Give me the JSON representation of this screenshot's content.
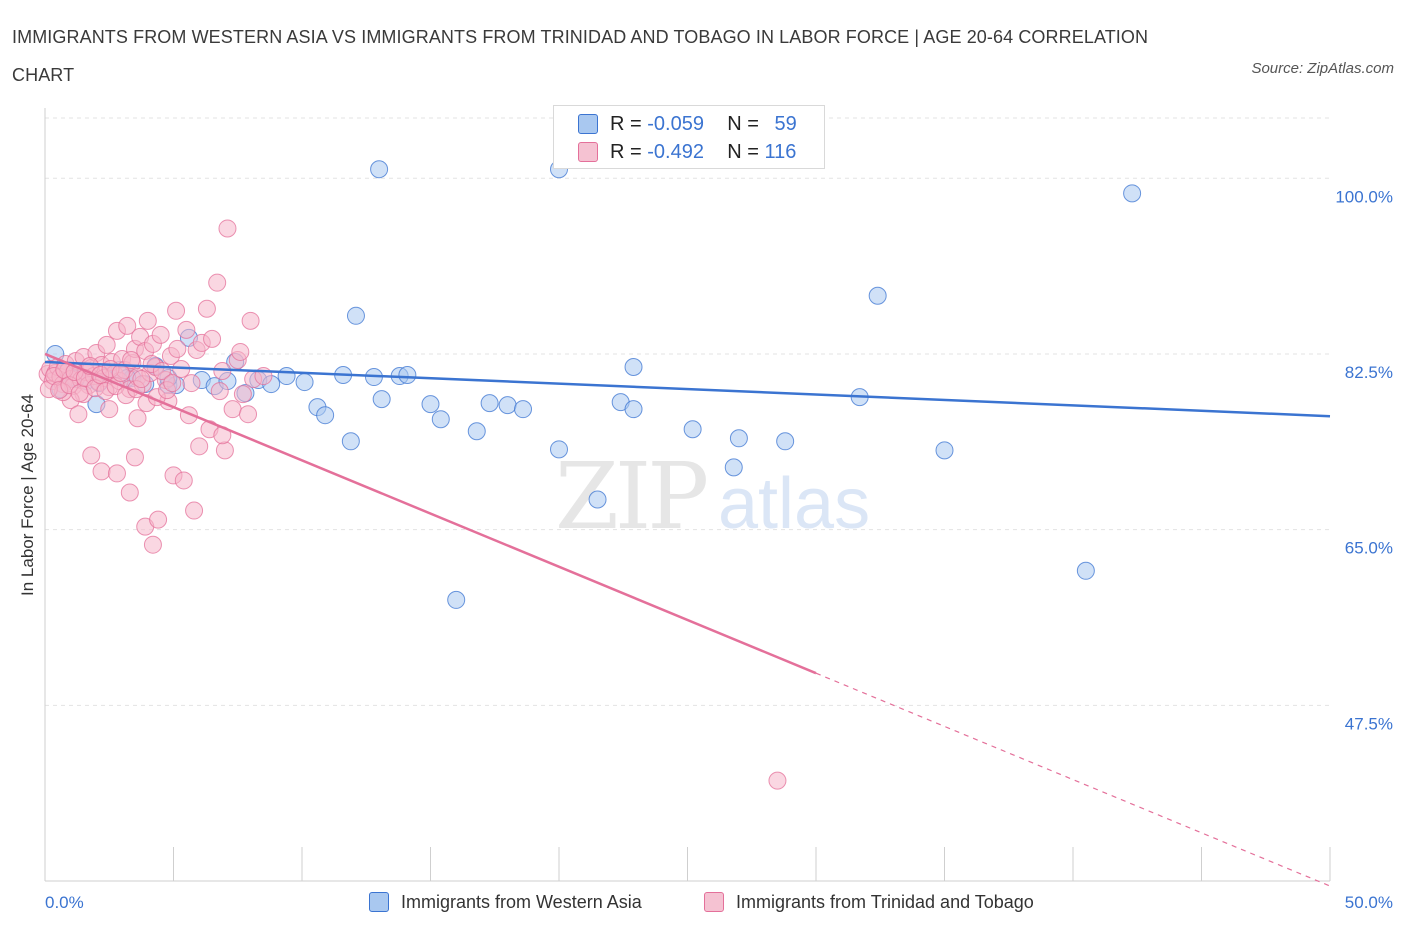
{
  "title": "IMMIGRANTS FROM WESTERN ASIA VS IMMIGRANTS FROM TRINIDAD AND TOBAGO IN LABOR FORCE | AGE 20-64 CORRELATION CHART",
  "source": "Source: ZipAtlas.com",
  "watermark": {
    "zip": "ZIP",
    "atlas": "atlas"
  },
  "legend": {
    "r_label": "R =",
    "n_label": "N =",
    "rows": [
      {
        "r": "-0.059",
        "n": "59"
      },
      {
        "r": "-0.492",
        "n": "116"
      }
    ]
  },
  "chart_data": {
    "type": "scatter",
    "ylabel": "In Labor Force | Age 20-64",
    "xlim": [
      0,
      50
    ],
    "ylim": [
      30,
      107
    ],
    "x_tick_labels": [
      "0.0%",
      "50.0%"
    ],
    "y_ticks": [
      {
        "value": 100,
        "label": "100.0%"
      },
      {
        "value": 82.5,
        "label": "82.5%"
      },
      {
        "value": 65,
        "label": "65.0%"
      },
      {
        "value": 47.5,
        "label": "47.5%"
      }
    ],
    "grid": true,
    "colors": {
      "blue": "#3b74d1",
      "pink": "#e4709a",
      "blue_fill": "#a9c8f0",
      "pink_fill": "#f5b6ca"
    },
    "series": [
      {
        "name": "Immigrants from Western Asia",
        "color": "#3b74d1",
        "trend": {
          "x": [
            0,
            50
          ],
          "y": [
            81.7,
            76.3
          ]
        },
        "points": [
          [
            0.4,
            82.5
          ],
          [
            0.8,
            80.7
          ],
          [
            1.1,
            80.2
          ],
          [
            1.6,
            79.8
          ],
          [
            2.1,
            79.6
          ],
          [
            2.5,
            80.4
          ],
          [
            2.9,
            80.9
          ],
          [
            3.4,
            80.1
          ],
          [
            3.9,
            79.5
          ],
          [
            4.3,
            81.3
          ],
          [
            4.8,
            79.4
          ],
          [
            5.1,
            79.4
          ],
          [
            5.6,
            84.1
          ],
          [
            6.1,
            79.9
          ],
          [
            6.6,
            79.3
          ],
          [
            7.1,
            79.8
          ],
          [
            7.4,
            81.7
          ],
          [
            7.8,
            78.6
          ],
          [
            8.3,
            79.9
          ],
          [
            8.8,
            79.5
          ],
          [
            9.4,
            80.3
          ],
          [
            10.1,
            79.7
          ],
          [
            10.6,
            77.2
          ],
          [
            10.9,
            76.4
          ],
          [
            11.6,
            80.4
          ],
          [
            12.1,
            86.3
          ],
          [
            11.9,
            73.8
          ],
          [
            12.8,
            80.2
          ],
          [
            13.1,
            78.0
          ],
          [
            13.8,
            80.3
          ],
          [
            14.1,
            80.4
          ],
          [
            15.0,
            77.5
          ],
          [
            15.4,
            76.0
          ],
          [
            16.0,
            58.0
          ],
          [
            16.8,
            74.8
          ],
          [
            17.3,
            77.6
          ],
          [
            18.0,
            77.4
          ],
          [
            18.6,
            77.0
          ],
          [
            20.0,
            73.0
          ],
          [
            21.5,
            68.0
          ],
          [
            22.4,
            77.7
          ],
          [
            22.9,
            81.2
          ],
          [
            22.9,
            77.0
          ],
          [
            25.2,
            75.0
          ],
          [
            26.8,
            71.2
          ],
          [
            27.0,
            74.1
          ],
          [
            28.8,
            73.8
          ],
          [
            31.7,
            78.2
          ],
          [
            32.4,
            88.3
          ],
          [
            35.0,
            72.9
          ],
          [
            40.5,
            60.9
          ],
          [
            42.3,
            98.5
          ],
          [
            4.8,
            80.1
          ],
          [
            3.2,
            80.1
          ],
          [
            1.2,
            80.0
          ],
          [
            13.0,
            100.9
          ],
          [
            20.0,
            100.9
          ],
          [
            2.0,
            77.5
          ],
          [
            0.6,
            79.0
          ]
        ]
      },
      {
        "name": "Immigrants from Trinidad and Tobago",
        "color": "#e4709a",
        "trend": {
          "x": [
            0,
            50
          ],
          "y": [
            82.5,
            29.5
          ],
          "solid_until": 30
        },
        "points": [
          [
            0.1,
            80.5
          ],
          [
            0.2,
            81.0
          ],
          [
            0.3,
            79.8
          ],
          [
            0.4,
            80.6
          ],
          [
            0.5,
            81.2
          ],
          [
            0.6,
            80.2
          ],
          [
            0.7,
            79.5
          ],
          [
            0.8,
            81.5
          ],
          [
            0.9,
            80.8
          ],
          [
            1.0,
            80.0
          ],
          [
            1.1,
            79.3
          ],
          [
            1.2,
            81.8
          ],
          [
            1.3,
            80.4
          ],
          [
            1.4,
            79.9
          ],
          [
            1.5,
            82.2
          ],
          [
            1.6,
            80.7
          ],
          [
            1.7,
            79.4
          ],
          [
            1.8,
            81.1
          ],
          [
            1.9,
            80.3
          ],
          [
            2.0,
            82.6
          ],
          [
            2.1,
            79.7
          ],
          [
            2.2,
            81.4
          ],
          [
            2.3,
            80.1
          ],
          [
            2.4,
            83.4
          ],
          [
            2.5,
            79.2
          ],
          [
            2.6,
            81.7
          ],
          [
            2.7,
            80.5
          ],
          [
            2.8,
            84.8
          ],
          [
            2.9,
            79.8
          ],
          [
            3.0,
            82.0
          ],
          [
            3.1,
            80.9
          ],
          [
            3.2,
            85.3
          ],
          [
            3.3,
            79.0
          ],
          [
            3.4,
            81.6
          ],
          [
            3.5,
            83.0
          ],
          [
            3.6,
            80.2
          ],
          [
            3.7,
            84.2
          ],
          [
            3.8,
            79.5
          ],
          [
            3.9,
            82.8
          ],
          [
            4.0,
            85.8
          ],
          [
            4.1,
            80.6
          ],
          [
            4.2,
            83.5
          ],
          [
            4.3,
            81.2
          ],
          [
            4.5,
            84.4
          ],
          [
            4.7,
            79.9
          ],
          [
            4.9,
            82.3
          ],
          [
            5.1,
            86.8
          ],
          [
            5.3,
            81.0
          ],
          [
            5.5,
            84.9
          ],
          [
            5.7,
            79.6
          ],
          [
            5.9,
            82.9
          ],
          [
            6.1,
            83.6
          ],
          [
            6.3,
            87.0
          ],
          [
            6.5,
            84.0
          ],
          [
            6.7,
            89.6
          ],
          [
            6.9,
            80.8
          ],
          [
            7.1,
            95.0
          ],
          [
            7.3,
            77.0
          ],
          [
            7.5,
            81.9
          ],
          [
            7.7,
            78.5
          ],
          [
            7.9,
            76.5
          ],
          [
            8.1,
            80.0
          ],
          [
            1.8,
            72.4
          ],
          [
            2.2,
            70.8
          ],
          [
            2.8,
            70.6
          ],
          [
            3.3,
            68.7
          ],
          [
            3.5,
            72.2
          ],
          [
            3.9,
            65.3
          ],
          [
            4.2,
            63.5
          ],
          [
            4.4,
            66.0
          ],
          [
            5.0,
            70.4
          ],
          [
            5.4,
            69.9
          ],
          [
            5.8,
            66.9
          ],
          [
            6.4,
            75.0
          ],
          [
            6.8,
            78.8
          ],
          [
            7.0,
            72.9
          ],
          [
            7.6,
            82.7
          ],
          [
            8.0,
            85.8
          ],
          [
            8.5,
            80.3
          ],
          [
            1.5,
            78.5
          ],
          [
            2.5,
            77.0
          ],
          [
            3.6,
            76.1
          ],
          [
            4.8,
            77.8
          ],
          [
            5.6,
            76.4
          ],
          [
            6.0,
            73.3
          ],
          [
            6.9,
            74.4
          ],
          [
            1.0,
            77.9
          ],
          [
            1.3,
            76.5
          ],
          [
            0.7,
            78.7
          ],
          [
            28.5,
            40.0
          ],
          [
            0.15,
            79.0
          ],
          [
            0.35,
            80.3
          ],
          [
            0.55,
            78.9
          ],
          [
            0.75,
            80.9
          ],
          [
            0.95,
            79.4
          ],
          [
            1.15,
            80.7
          ],
          [
            1.35,
            78.6
          ],
          [
            1.55,
            80.1
          ],
          [
            1.75,
            81.3
          ],
          [
            1.95,
            79.1
          ],
          [
            2.15,
            80.4
          ],
          [
            2.35,
            78.8
          ],
          [
            2.55,
            81.0
          ],
          [
            2.75,
            79.3
          ],
          [
            2.95,
            80.6
          ],
          [
            3.15,
            78.4
          ],
          [
            3.35,
            81.9
          ],
          [
            3.55,
            79.0
          ],
          [
            3.75,
            80.0
          ],
          [
            3.95,
            77.6
          ],
          [
            4.15,
            81.5
          ],
          [
            4.35,
            78.2
          ],
          [
            4.55,
            80.8
          ],
          [
            4.75,
            78.9
          ],
          [
            4.95,
            79.6
          ],
          [
            5.15,
            83.0
          ]
        ]
      }
    ]
  }
}
